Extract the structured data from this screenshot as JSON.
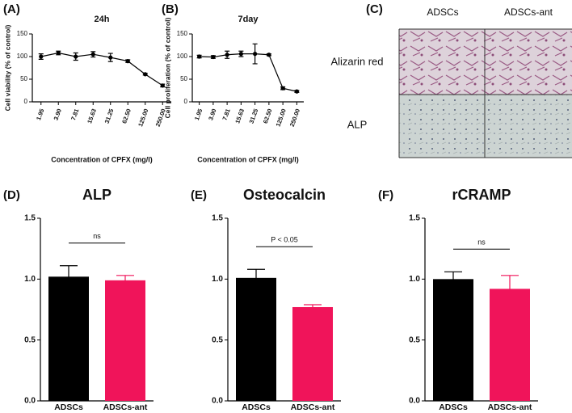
{
  "chart_data": [
    {
      "type": "line",
      "panel_label": "(A)",
      "title": "24h",
      "y_label": "Cell viability (% of control)",
      "x_label": "Concentration of CPFX (mg/l)",
      "categories": [
        "1.95",
        "3.90",
        "7.81",
        "15.63",
        "31.25",
        "62.50",
        "125.00",
        "250.00"
      ],
      "values": [
        100,
        108,
        100,
        105,
        98,
        90,
        61,
        36
      ],
      "errors": [
        6,
        4,
        8,
        6,
        9,
        3,
        2,
        3
      ],
      "color": "#000000",
      "ylim": [
        0,
        150
      ],
      "yticks": [
        0,
        50,
        100,
        150
      ]
    },
    {
      "type": "line",
      "panel_label": "(B)",
      "title": "7day",
      "y_label": "Cell proliferation (% of control)",
      "x_label": "Concentration of CPFX (mg/l)",
      "categories": [
        "1.95",
        "3.90",
        "7.81",
        "15.63",
        "31.25",
        "62.50",
        "125.00",
        "250.00"
      ],
      "values": [
        100,
        99,
        104,
        106,
        106,
        104,
        30,
        23
      ],
      "errors": [
        3,
        3,
        8,
        6,
        22,
        2,
        3,
        2
      ],
      "color": "#000000",
      "ylim": [
        0,
        150
      ],
      "yticks": [
        0,
        50,
        100,
        150
      ]
    },
    {
      "type": "bar",
      "panel_label": "(D)",
      "title": "ALP",
      "categories": [
        "ADSCs",
        "ADSCs-ant"
      ],
      "values": [
        1.02,
        0.99
      ],
      "errors": [
        0.09,
        0.04
      ],
      "colors": [
        "#000000",
        "#f0145a"
      ],
      "annotation": "ns",
      "ylim": [
        0,
        1.5
      ],
      "yticks": [
        {
          "value": 0,
          "label": "0.0"
        },
        0.5,
        {
          "value": 1,
          "label": "1.0"
        },
        1.5
      ]
    },
    {
      "type": "bar",
      "panel_label": "(E)",
      "title": "Osteocalcin",
      "categories": [
        "ADSCs",
        "ADSCs-ant"
      ],
      "values": [
        1.01,
        0.77
      ],
      "errors": [
        0.07,
        0.02
      ],
      "colors": [
        "#000000",
        "#f0145a"
      ],
      "annotation": "P < 0.05",
      "ylim": [
        0,
        1.5
      ],
      "yticks": [
        {
          "value": 0,
          "label": "0.0"
        },
        0.5,
        {
          "value": 1,
          "label": "1.0"
        },
        1.5
      ]
    },
    {
      "type": "bar",
      "panel_label": "(F)",
      "title": "rCRAMP",
      "categories": [
        "ADSCs",
        "ADSCs-ant"
      ],
      "values": [
        1.0,
        0.92
      ],
      "errors": [
        0.06,
        0.11
      ],
      "colors": [
        "#000000",
        "#f0145a"
      ],
      "annotation": "ns",
      "ylim": [
        0,
        1.5
      ],
      "yticks": [
        {
          "value": 0,
          "label": "0.0"
        },
        0.5,
        {
          "value": 1,
          "label": "1.0"
        },
        1.5
      ]
    }
  ],
  "image_grid": {
    "panel_label": "(C)",
    "columns": [
      "ADSCs",
      "ADSCs-ant"
    ],
    "rows": [
      "Alizarin red",
      "ALP"
    ]
  }
}
